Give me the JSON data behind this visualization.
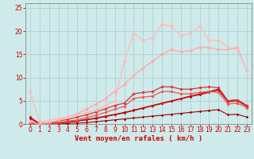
{
  "bg_color": "#ceeaea",
  "grid_color": "#aacccc",
  "xlabel": "Vent moyen/en rafales ( km/h )",
  "xlabel_color": "#cc0000",
  "xlabel_fontsize": 6.5,
  "tick_color": "#cc0000",
  "tick_fontsize": 5.5,
  "ylim": [
    0,
    26
  ],
  "xlim": [
    -0.5,
    23.5
  ],
  "yticks": [
    0,
    5,
    10,
    15,
    20,
    25
  ],
  "xticks": [
    0,
    1,
    2,
    3,
    4,
    5,
    6,
    7,
    8,
    9,
    10,
    11,
    12,
    13,
    14,
    15,
    16,
    17,
    18,
    19,
    20,
    21,
    22,
    23
  ],
  "lines": [
    {
      "x": [
        0,
        1,
        2,
        3,
        4,
        5,
        6,
        7,
        8,
        9,
        10,
        11,
        12,
        13,
        14,
        15,
        16,
        17,
        18,
        19,
        20,
        21,
        22,
        23
      ],
      "y": [
        0.5,
        0.0,
        0.0,
        0.0,
        0.1,
        0.2,
        0.3,
        0.5,
        0.7,
        0.9,
        1.1,
        1.3,
        1.5,
        1.7,
        1.9,
        2.1,
        2.3,
        2.5,
        2.7,
        2.9,
        3.1,
        2.0,
        2.1,
        1.5
      ],
      "color": "#990000",
      "lw": 0.8,
      "marker": "D",
      "ms": 1.5,
      "zorder": 3
    },
    {
      "x": [
        0,
        1,
        2,
        3,
        4,
        5,
        6,
        7,
        8,
        9,
        10,
        11,
        12,
        13,
        14,
        15,
        16,
        17,
        18,
        19,
        20,
        21,
        22,
        23
      ],
      "y": [
        1.2,
        0.0,
        0.1,
        0.2,
        0.4,
        0.6,
        0.9,
        1.2,
        1.6,
        2.0,
        2.4,
        2.9,
        3.4,
        3.9,
        4.4,
        4.9,
        5.4,
        5.9,
        6.3,
        6.8,
        7.3,
        4.8,
        5.0,
        3.8
      ],
      "color": "#bb0000",
      "lw": 0.8,
      "marker": "D",
      "ms": 1.5,
      "zorder": 4
    },
    {
      "x": [
        0,
        1,
        2,
        3,
        4,
        5,
        6,
        7,
        8,
        9,
        10,
        11,
        12,
        13,
        14,
        15,
        16,
        17,
        18,
        19,
        20,
        21,
        22,
        23
      ],
      "y": [
        1.5,
        0.1,
        0.2,
        0.3,
        0.5,
        0.7,
        1.0,
        1.3,
        1.7,
        2.1,
        2.5,
        3.0,
        3.5,
        4.0,
        4.5,
        5.0,
        5.5,
        6.0,
        6.5,
        7.0,
        7.5,
        5.0,
        5.2,
        4.0
      ],
      "color": "#cc0000",
      "lw": 0.8,
      "marker": "D",
      "ms": 1.5,
      "zorder": 4
    },
    {
      "x": [
        0,
        1,
        2,
        3,
        4,
        5,
        6,
        7,
        8,
        9,
        10,
        11,
        12,
        13,
        14,
        15,
        16,
        17,
        18,
        19,
        20,
        21,
        22,
        23
      ],
      "y": [
        0.2,
        0.0,
        0.3,
        0.6,
        1.0,
        1.5,
        2.0,
        2.6,
        3.3,
        4.0,
        4.5,
        6.5,
        6.8,
        7.0,
        8.0,
        8.0,
        7.5,
        7.5,
        7.8,
        8.0,
        7.8,
        5.0,
        5.2,
        4.0
      ],
      "color": "#dd3333",
      "lw": 0.9,
      "marker": "D",
      "ms": 1.8,
      "zorder": 5
    },
    {
      "x": [
        0,
        1,
        2,
        3,
        4,
        5,
        6,
        7,
        8,
        9,
        10,
        11,
        12,
        13,
        14,
        15,
        16,
        17,
        18,
        19,
        20,
        21,
        22,
        23
      ],
      "y": [
        0.0,
        0.0,
        0.1,
        0.3,
        0.6,
        0.9,
        1.4,
        1.9,
        2.5,
        3.2,
        3.8,
        5.5,
        5.8,
        6.0,
        7.0,
        7.0,
        6.5,
        6.5,
        6.8,
        7.0,
        6.8,
        4.3,
        4.5,
        3.5
      ],
      "color": "#ee5555",
      "lw": 0.9,
      "marker": "D",
      "ms": 1.8,
      "zorder": 4
    },
    {
      "x": [
        0,
        1,
        2,
        3,
        4,
        5,
        6,
        7,
        8,
        9,
        10,
        11,
        12,
        13,
        14,
        15,
        16,
        17,
        18,
        19,
        20,
        21,
        22,
        23
      ],
      "y": [
        0.5,
        0.0,
        0.3,
        0.8,
        1.5,
        2.2,
        3.2,
        4.3,
        5.5,
        7.0,
        8.5,
        10.5,
        12.0,
        13.5,
        15.0,
        16.0,
        15.5,
        15.8,
        16.5,
        16.5,
        16.0,
        16.0,
        16.5,
        11.5
      ],
      "color": "#ffaaaa",
      "lw": 1.0,
      "marker": "D",
      "ms": 2.0,
      "zorder": 5
    },
    {
      "x": [
        0,
        1,
        2,
        3,
        4,
        5,
        6,
        7,
        8,
        9,
        10,
        11,
        12,
        13,
        14,
        15,
        16,
        17,
        18,
        19,
        20,
        21,
        22,
        23
      ],
      "y": [
        7.0,
        0.5,
        0.8,
        1.2,
        1.5,
        2.0,
        2.5,
        3.0,
        4.0,
        5.0,
        13.5,
        19.5,
        18.0,
        18.5,
        21.5,
        21.0,
        19.0,
        19.5,
        21.0,
        18.0,
        18.0,
        16.5,
        16.0,
        11.5
      ],
      "color": "#ffbbbb",
      "lw": 1.0,
      "marker": "D",
      "ms": 2.2,
      "zorder": 6
    }
  ]
}
